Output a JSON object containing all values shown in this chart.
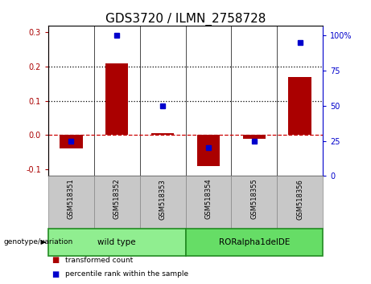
{
  "title": "GDS3720 / ILMN_2758728",
  "categories": [
    "GSM518351",
    "GSM518352",
    "GSM518353",
    "GSM518354",
    "GSM518355",
    "GSM518356"
  ],
  "bar_values": [
    -0.04,
    0.21,
    0.005,
    -0.09,
    -0.01,
    0.17
  ],
  "dot_percentiles": [
    25,
    100,
    50,
    20,
    25,
    95
  ],
  "bar_color": "#AA0000",
  "dot_color": "#0000CC",
  "ylim_left": [
    -0.12,
    0.32
  ],
  "ylim_right": [
    0,
    107
  ],
  "yticks_left": [
    -0.1,
    0.0,
    0.1,
    0.2,
    0.3
  ],
  "yticks_right": [
    0,
    25,
    50,
    75,
    100
  ],
  "ytick_labels_right": [
    "0",
    "25",
    "50",
    "75",
    "100%"
  ],
  "dotted_line_color": "black",
  "zero_line_color": "#CC0000",
  "group1_label": "wild type",
  "group2_label": "RORalpha1delDE",
  "group1_color": "#90EE90",
  "group2_color": "#66DD66",
  "group_edge_color": "#228B22",
  "xlabel_left": "genotype/variation",
  "legend_bar": "transformed count",
  "legend_dot": "percentile rank within the sample",
  "bar_width": 0.5,
  "tick_label_size": 7,
  "title_fontsize": 11,
  "label_box_color": "#C8C8C8",
  "label_box_edge": "#888888"
}
